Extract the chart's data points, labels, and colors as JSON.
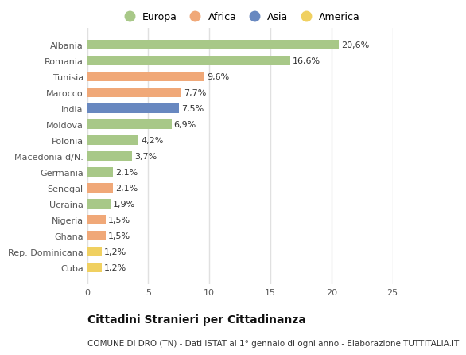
{
  "categories": [
    "Albania",
    "Romania",
    "Tunisia",
    "Marocco",
    "India",
    "Moldova",
    "Polonia",
    "Macedonia d/N.",
    "Germania",
    "Senegal",
    "Ucraina",
    "Nigeria",
    "Ghana",
    "Rep. Dominicana",
    "Cuba"
  ],
  "values": [
    20.6,
    16.6,
    9.6,
    7.7,
    7.5,
    6.9,
    4.2,
    3.7,
    2.1,
    2.1,
    1.9,
    1.5,
    1.5,
    1.2,
    1.2
  ],
  "labels": [
    "20,6%",
    "16,6%",
    "9,6%",
    "7,7%",
    "7,5%",
    "6,9%",
    "4,2%",
    "3,7%",
    "2,1%",
    "2,1%",
    "1,9%",
    "1,5%",
    "1,5%",
    "1,2%",
    "1,2%"
  ],
  "colors": [
    "#a8c888",
    "#a8c888",
    "#f0a878",
    "#f0a878",
    "#6888c0",
    "#a8c888",
    "#a8c888",
    "#a8c888",
    "#a8c888",
    "#f0a878",
    "#a8c888",
    "#f0a878",
    "#f0a878",
    "#f0d060",
    "#f0d060"
  ],
  "continent_colors": {
    "Europa": "#a8c888",
    "Africa": "#f0a878",
    "Asia": "#6888c0",
    "America": "#f0d060"
  },
  "xlim": [
    0,
    25
  ],
  "xticks": [
    0,
    5,
    10,
    15,
    20,
    25
  ],
  "title": "Cittadini Stranieri per Cittadinanza",
  "subtitle": "COMUNE DI DRO (TN) - Dati ISTAT al 1° gennaio di ogni anno - Elaborazione TUTTITALIA.IT",
  "plot_bg_color": "#ffffff",
  "fig_bg_color": "#ffffff",
  "grid_color": "#e0e0e0",
  "bar_height": 0.6,
  "label_fontsize": 8,
  "tick_fontsize": 8,
  "title_fontsize": 10,
  "subtitle_fontsize": 7.5,
  "legend_fontsize": 9
}
